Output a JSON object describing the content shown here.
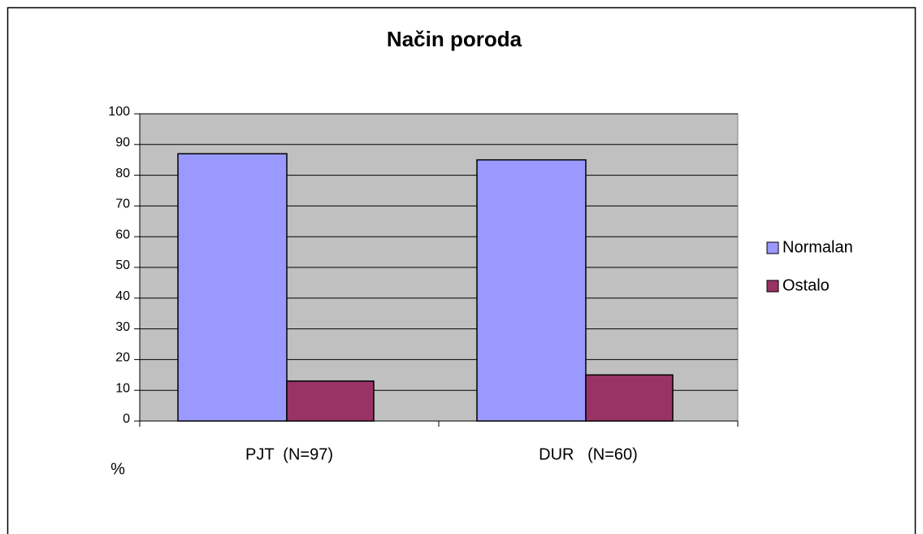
{
  "chart_data": {
    "type": "bar",
    "title": "Način poroda",
    "y_label": "%",
    "categories": [
      "PJT  (N=97)",
      "DUR   (N=60)"
    ],
    "series": [
      {
        "name": "Normalan",
        "color": "#9999ff",
        "values": [
          87,
          85
        ]
      },
      {
        "name": "Ostalo",
        "color": "#993366",
        "values": [
          13,
          15
        ]
      }
    ],
    "ylim": [
      0,
      100
    ],
    "yticks": [
      0,
      10,
      20,
      30,
      40,
      50,
      60,
      70,
      80,
      90,
      100
    ],
    "grid": true,
    "legend": "right",
    "plot_background": "#c0c0c0"
  }
}
